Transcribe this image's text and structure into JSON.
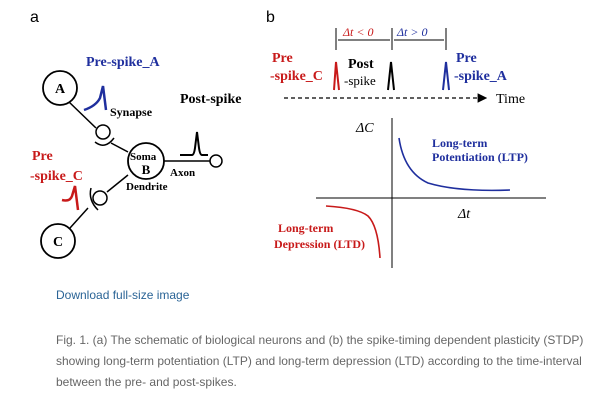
{
  "panels": {
    "a": {
      "letter": "a",
      "neuron_a_label": "A",
      "neuron_b_label": "B",
      "neuron_c_label": "C",
      "pre_spike_a": "Pre-spike_A",
      "synapse": "Synapse",
      "post_spike": "Post-spike",
      "soma": "Soma",
      "axon": "Axon",
      "dendrite": "Dendrite",
      "pre_spike_c_line1": "Pre",
      "pre_spike_c_line2": "-spike_C"
    },
    "b": {
      "letter": "b",
      "dt_neg": "Δt < 0",
      "dt_pos": "Δt > 0",
      "pre_c_line1": "Pre",
      "pre_c_line2": "-spike_C",
      "post_line1": "Post",
      "post_line2": "-spike",
      "pre_a_line1": "Pre",
      "pre_a_line2": "-spike_A",
      "time": "Time",
      "y_axis": "ΔC",
      "x_axis": "Δt",
      "ltp_line1": "Long-term",
      "ltp_line2": "Potentiation (LTP)",
      "ltd_line1": "Long-term",
      "ltd_line2": "Depression (LTD)"
    }
  },
  "colors": {
    "blue": "#1f2f9e",
    "red": "#c81a1a",
    "link": "#2a6496",
    "caption": "#666666"
  },
  "download_link": "Download full-size image",
  "caption": "Fig. 1. (a) The schematic of biological neurons and (b) the spike-timing dependent plasticity (STDP) showing long-term potentiation (LTP) and long-term depression (LTD) according to the time-interval between the pre- and post-spikes."
}
